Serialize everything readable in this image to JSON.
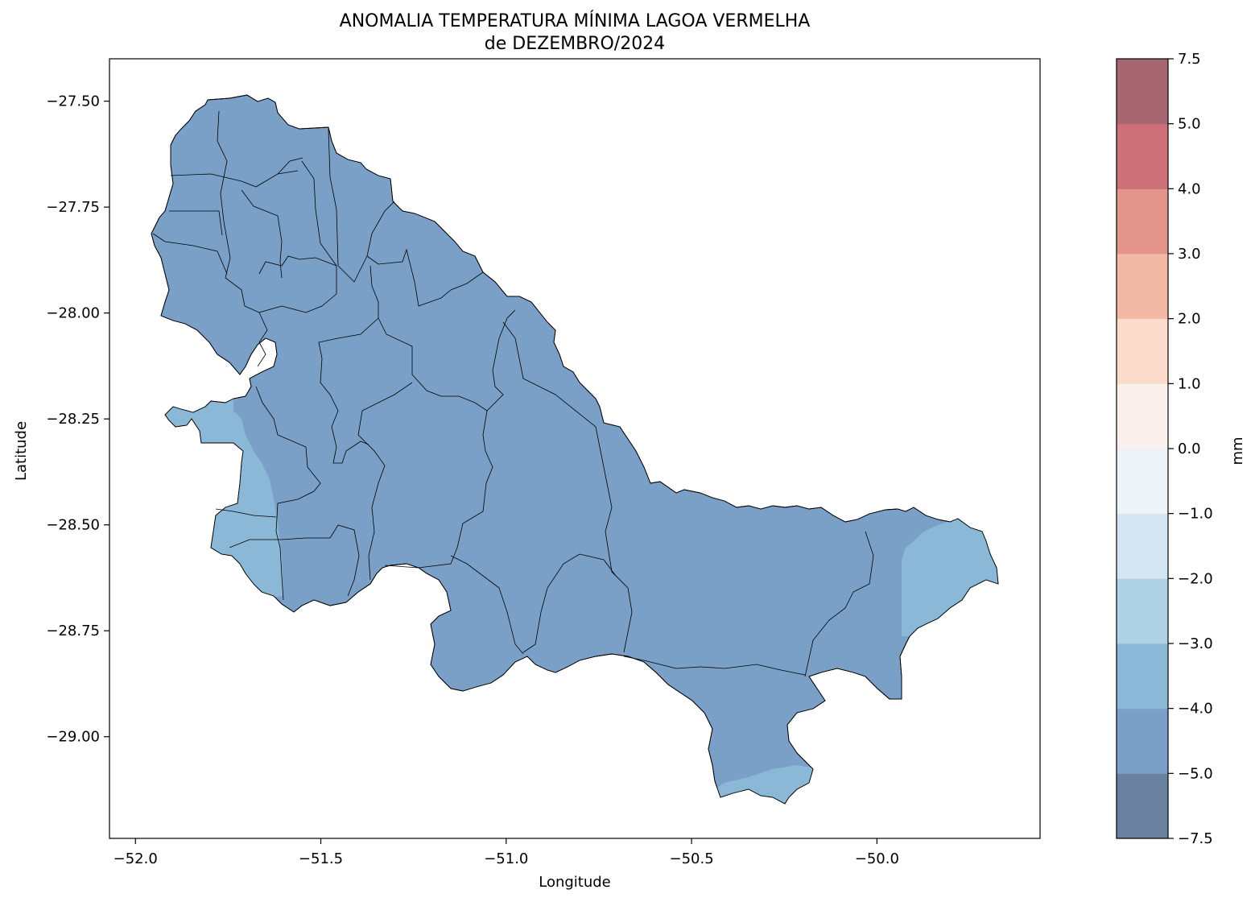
{
  "title": {
    "line1": "ANOMALIA TEMPERATURA MÍNIMA LAGOA VERMELHA",
    "line2": "de DEZEMBRO/2024"
  },
  "axes": {
    "xlabel": "Longitude",
    "ylabel": "Latitude",
    "xlim": [
      -52.07,
      -49.56
    ],
    "ylim": [
      -29.24,
      -27.4
    ],
    "xticks": [
      {
        "value": -52.0,
        "label": "−52.0"
      },
      {
        "value": -51.5,
        "label": "−51.5"
      },
      {
        "value": -51.0,
        "label": "−51.0"
      },
      {
        "value": -50.5,
        "label": "−50.5"
      },
      {
        "value": -50.0,
        "label": "−50.0"
      }
    ],
    "yticks": [
      {
        "value": -27.5,
        "label": "−27.50"
      },
      {
        "value": -27.75,
        "label": "−27.75"
      },
      {
        "value": -28.0,
        "label": "−28.00"
      },
      {
        "value": -28.25,
        "label": "−28.25"
      },
      {
        "value": -28.5,
        "label": "−28.50"
      },
      {
        "value": -28.75,
        "label": "−28.75"
      },
      {
        "value": -29.0,
        "label": "−29.00"
      }
    ]
  },
  "colorbar": {
    "label": "mm",
    "levels": [
      {
        "from": -7.5,
        "to": -5.0,
        "color": "#6a82a0"
      },
      {
        "from": -5.0,
        "to": -4.0,
        "color": "#7aa0c8"
      },
      {
        "from": -4.0,
        "to": -3.0,
        "color": "#8cb8d8"
      },
      {
        "from": -3.0,
        "to": -2.0,
        "color": "#b0d2e6"
      },
      {
        "from": -2.0,
        "to": -1.0,
        "color": "#d4e6f2"
      },
      {
        "from": -1.0,
        "to": 0.0,
        "color": "#eef3f7"
      },
      {
        "from": 0.0,
        "to": 1.0,
        "color": "#faf1ec"
      },
      {
        "from": 1.0,
        "to": 2.0,
        "color": "#fbdccd"
      },
      {
        "from": 2.0,
        "to": 3.0,
        "color": "#f2baa5"
      },
      {
        "from": 3.0,
        "to": 4.0,
        "color": "#e3958c"
      },
      {
        "from": 4.0,
        "to": 5.0,
        "color": "#cd707a"
      },
      {
        "from": 5.0,
        "to": 7.5,
        "color": "#a86673"
      }
    ],
    "tick_labels": [
      "−7.5",
      "−5.0",
      "−4.0",
      "−3.0",
      "−2.0",
      "−1.0",
      "0.0",
      "1.0",
      "2.0",
      "3.0",
      "4.0",
      "5.0",
      "7.5"
    ]
  },
  "map": {
    "region_fill": "#7aa0c8",
    "light_fill": "#8cb8d8",
    "border_color": "#000000"
  }
}
